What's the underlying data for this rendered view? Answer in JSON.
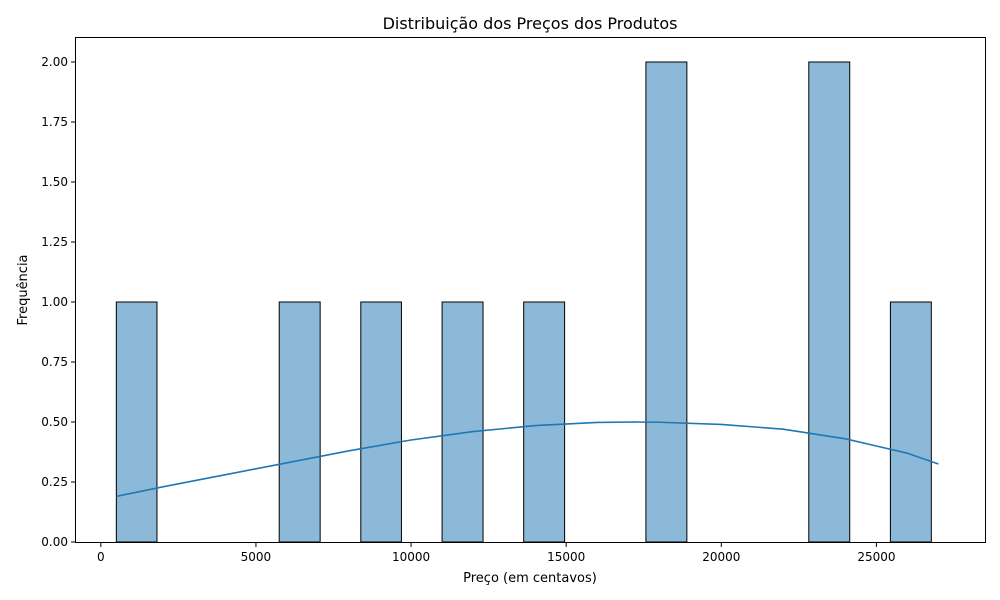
{
  "chart_data": {
    "type": "bar",
    "subtype": "histogram-with-kde",
    "title": "Distribuição dos Preços dos Produtos",
    "xlabel": "Preço (em centavos)",
    "ylabel": "Frequência",
    "xlim": [
      -800,
      28500
    ],
    "ylim": [
      0,
      2.1
    ],
    "xticks": [
      0,
      5000,
      10000,
      15000,
      20000,
      25000
    ],
    "xtick_labels": [
      "0",
      "5000",
      "10000",
      "15000",
      "20000",
      "25000"
    ],
    "yticks": [
      0,
      0.25,
      0.5,
      0.75,
      1.0,
      1.25,
      1.5,
      1.75,
      2.0
    ],
    "ytick_labels": [
      "0.00",
      "0.25",
      "0.50",
      "0.75",
      "1.00",
      "1.25",
      "1.50",
      "1.75",
      "2.00"
    ],
    "grid": false,
    "legend": "none",
    "bars": [
      {
        "x0": 500,
        "x1": 1810,
        "count": 1
      },
      {
        "x0": 5750,
        "x1": 7070,
        "count": 1
      },
      {
        "x0": 8380,
        "x1": 9690,
        "count": 1
      },
      {
        "x0": 11000,
        "x1": 12320,
        "count": 1
      },
      {
        "x0": 13630,
        "x1": 14950,
        "count": 1
      },
      {
        "x0": 17570,
        "x1": 18890,
        "count": 2
      },
      {
        "x0": 22820,
        "x1": 24140,
        "count": 2
      },
      {
        "x0": 25450,
        "x1": 26770,
        "count": 1
      }
    ],
    "kde": {
      "x": [
        500,
        2000,
        4000,
        6000,
        8000,
        10000,
        12000,
        14000,
        16000,
        17200,
        18000,
        20000,
        22000,
        24000,
        25000,
        26000,
        27000
      ],
      "y": [
        0.19,
        0.23,
        0.28,
        0.33,
        0.38,
        0.425,
        0.46,
        0.485,
        0.498,
        0.5,
        0.499,
        0.49,
        0.47,
        0.43,
        0.4,
        0.37,
        0.325
      ]
    },
    "colors": {
      "bar_fill": "#8db9d9",
      "bar_edge": "#000000",
      "kde_line": "#1f77b4"
    }
  }
}
